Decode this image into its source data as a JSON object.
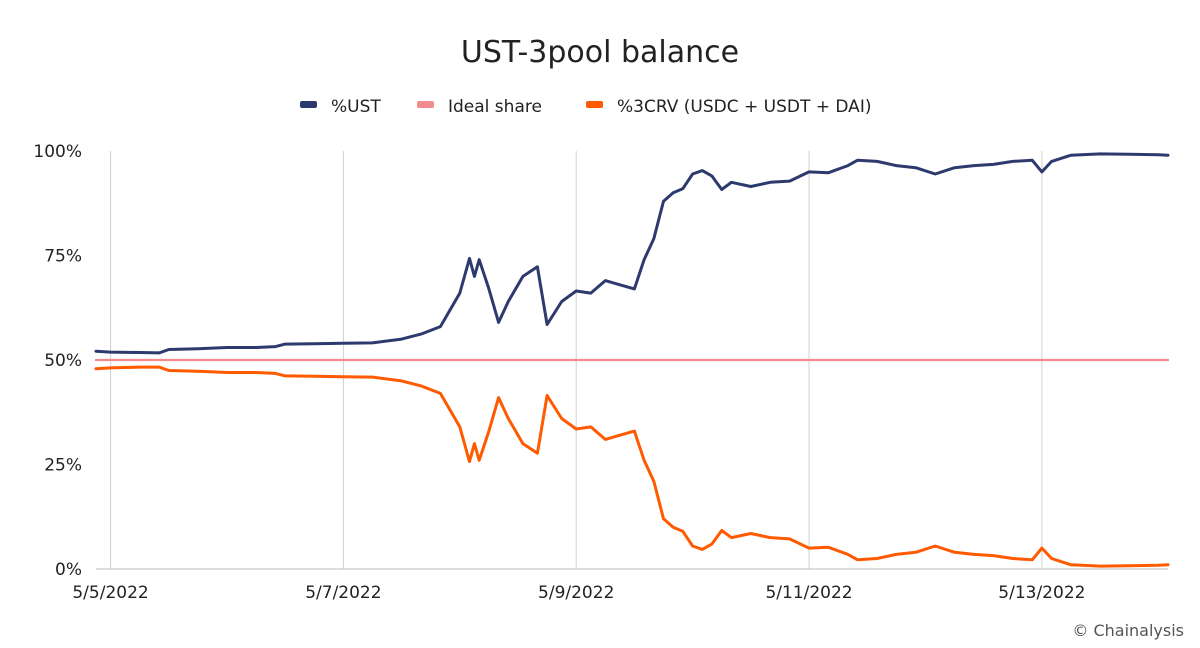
{
  "chart_data": {
    "type": "line",
    "title": "UST-3pool balance",
    "credit": "© Chainalysis",
    "xlabel": "",
    "ylabel": "",
    "x_range": [
      "2022-05-04T21:00",
      "2022-05-14T02:00"
    ],
    "x_ticks": [
      {
        "x": "2022-05-05T00:00",
        "label": "5/5/2022"
      },
      {
        "x": "2022-05-07T00:00",
        "label": "5/7/2022"
      },
      {
        "x": "2022-05-09T00:00",
        "label": "5/9/2022"
      },
      {
        "x": "2022-05-11T00:00",
        "label": "5/11/2022"
      },
      {
        "x": "2022-05-13T00:00",
        "label": "5/13/2022"
      }
    ],
    "ylim": [
      0,
      100
    ],
    "y_ticks": [
      {
        "value": 0,
        "label": "0%"
      },
      {
        "value": 25,
        "label": "25%"
      },
      {
        "value": 50,
        "label": "50%"
      },
      {
        "value": 75,
        "label": "75%"
      },
      {
        "value": 100,
        "label": "100%"
      }
    ],
    "grid": {
      "x": true,
      "y": false
    },
    "legend_position": "top-center",
    "series": [
      {
        "name": "%UST",
        "color": "#2d3a6e",
        "points": [
          [
            "2022-05-04T21:00",
            52.1
          ],
          [
            "2022-05-05T00:00",
            51.9
          ],
          [
            "2022-05-05T06:00",
            51.8
          ],
          [
            "2022-05-05T10:00",
            51.7
          ],
          [
            "2022-05-05T12:00",
            52.5
          ],
          [
            "2022-05-05T18:00",
            52.7
          ],
          [
            "2022-05-06T00:00",
            53.0
          ],
          [
            "2022-05-06T06:00",
            53.0
          ],
          [
            "2022-05-06T10:00",
            53.2
          ],
          [
            "2022-05-06T12:00",
            53.8
          ],
          [
            "2022-05-06T18:00",
            53.9
          ],
          [
            "2022-05-07T00:00",
            54.0
          ],
          [
            "2022-05-07T06:00",
            54.1
          ],
          [
            "2022-05-07T12:00",
            55.0
          ],
          [
            "2022-05-07T16:00",
            56.2
          ],
          [
            "2022-05-07T20:00",
            58.0
          ],
          [
            "2022-05-08T00:00",
            66.0
          ],
          [
            "2022-05-08T02:00",
            74.3
          ],
          [
            "2022-05-08T03:00",
            70.0
          ],
          [
            "2022-05-08T04:00",
            74.0
          ],
          [
            "2022-05-08T06:00",
            67.0
          ],
          [
            "2022-05-08T08:00",
            59.0
          ],
          [
            "2022-05-08T10:00",
            64.0
          ],
          [
            "2022-05-08T13:00",
            70.0
          ],
          [
            "2022-05-08T16:00",
            72.3
          ],
          [
            "2022-05-08T18:00",
            58.5
          ],
          [
            "2022-05-08T21:00",
            64.0
          ],
          [
            "2022-05-09T00:00",
            66.5
          ],
          [
            "2022-05-09T03:00",
            66.0
          ],
          [
            "2022-05-09T06:00",
            69.0
          ],
          [
            "2022-05-09T09:00",
            68.0
          ],
          [
            "2022-05-09T12:00",
            67.0
          ],
          [
            "2022-05-09T14:00",
            74.0
          ],
          [
            "2022-05-09T16:00",
            79.0
          ],
          [
            "2022-05-09T18:00",
            88.0
          ],
          [
            "2022-05-09T20:00",
            90.0
          ],
          [
            "2022-05-09T22:00",
            91.0
          ],
          [
            "2022-05-10T00:00",
            94.5
          ],
          [
            "2022-05-10T02:00",
            95.3
          ],
          [
            "2022-05-10T04:00",
            94.0
          ],
          [
            "2022-05-10T06:00",
            90.8
          ],
          [
            "2022-05-10T08:00",
            92.5
          ],
          [
            "2022-05-10T12:00",
            91.5
          ],
          [
            "2022-05-10T16:00",
            92.5
          ],
          [
            "2022-05-10T20:00",
            92.8
          ],
          [
            "2022-05-11T00:00",
            95.0
          ],
          [
            "2022-05-11T04:00",
            94.8
          ],
          [
            "2022-05-11T08:00",
            96.5
          ],
          [
            "2022-05-11T10:00",
            97.8
          ],
          [
            "2022-05-11T14:00",
            97.5
          ],
          [
            "2022-05-11T18:00",
            96.5
          ],
          [
            "2022-05-11T22:00",
            96.0
          ],
          [
            "2022-05-12T02:00",
            94.5
          ],
          [
            "2022-05-12T06:00",
            96.0
          ],
          [
            "2022-05-12T10:00",
            96.5
          ],
          [
            "2022-05-12T14:00",
            96.8
          ],
          [
            "2022-05-12T18:00",
            97.5
          ],
          [
            "2022-05-12T22:00",
            97.8
          ],
          [
            "2022-05-13T00:00",
            95.0
          ],
          [
            "2022-05-13T02:00",
            97.5
          ],
          [
            "2022-05-13T06:00",
            99.0
          ],
          [
            "2022-05-13T12:00",
            99.3
          ],
          [
            "2022-05-13T18:00",
            99.2
          ],
          [
            "2022-05-14T00:00",
            99.1
          ],
          [
            "2022-05-14T02:00",
            99.0
          ]
        ]
      },
      {
        "name": "Ideal share",
        "color": "#f28b8e",
        "points": [
          [
            "2022-05-04T21:00",
            50
          ],
          [
            "2022-05-14T02:00",
            50
          ]
        ]
      },
      {
        "name": "%3CRV (USDC + USDT + DAI)",
        "color": "#ff5a00",
        "points": [
          [
            "2022-05-04T21:00",
            47.9
          ],
          [
            "2022-05-05T00:00",
            48.1
          ],
          [
            "2022-05-05T06:00",
            48.3
          ],
          [
            "2022-05-05T10:00",
            48.3
          ],
          [
            "2022-05-05T12:00",
            47.5
          ],
          [
            "2022-05-05T18:00",
            47.3
          ],
          [
            "2022-05-06T00:00",
            47.0
          ],
          [
            "2022-05-06T06:00",
            47.0
          ],
          [
            "2022-05-06T10:00",
            46.8
          ],
          [
            "2022-05-06T12:00",
            46.2
          ],
          [
            "2022-05-06T18:00",
            46.1
          ],
          [
            "2022-05-07T00:00",
            46.0
          ],
          [
            "2022-05-07T06:00",
            45.9
          ],
          [
            "2022-05-07T12:00",
            45.0
          ],
          [
            "2022-05-07T16:00",
            43.8
          ],
          [
            "2022-05-07T20:00",
            42.0
          ],
          [
            "2022-05-08T00:00",
            34.0
          ],
          [
            "2022-05-08T02:00",
            25.7
          ],
          [
            "2022-05-08T03:00",
            30.0
          ],
          [
            "2022-05-08T04:00",
            26.0
          ],
          [
            "2022-05-08T06:00",
            33.0
          ],
          [
            "2022-05-08T08:00",
            41.0
          ],
          [
            "2022-05-08T10:00",
            36.0
          ],
          [
            "2022-05-08T13:00",
            30.0
          ],
          [
            "2022-05-08T16:00",
            27.7
          ],
          [
            "2022-05-08T18:00",
            41.5
          ],
          [
            "2022-05-08T21:00",
            36.0
          ],
          [
            "2022-05-09T00:00",
            33.5
          ],
          [
            "2022-05-09T03:00",
            34.0
          ],
          [
            "2022-05-09T06:00",
            31.0
          ],
          [
            "2022-05-09T09:00",
            32.0
          ],
          [
            "2022-05-09T12:00",
            33.0
          ],
          [
            "2022-05-09T14:00",
            26.0
          ],
          [
            "2022-05-09T16:00",
            21.0
          ],
          [
            "2022-05-09T18:00",
            12.0
          ],
          [
            "2022-05-09T20:00",
            10.0
          ],
          [
            "2022-05-09T22:00",
            9.0
          ],
          [
            "2022-05-10T00:00",
            5.5
          ],
          [
            "2022-05-10T02:00",
            4.7
          ],
          [
            "2022-05-10T04:00",
            6.0
          ],
          [
            "2022-05-10T06:00",
            9.2
          ],
          [
            "2022-05-10T08:00",
            7.5
          ],
          [
            "2022-05-10T12:00",
            8.5
          ],
          [
            "2022-05-10T16:00",
            7.5
          ],
          [
            "2022-05-10T20:00",
            7.2
          ],
          [
            "2022-05-11T00:00",
            5.0
          ],
          [
            "2022-05-11T04:00",
            5.2
          ],
          [
            "2022-05-11T08:00",
            3.5
          ],
          [
            "2022-05-11T10:00",
            2.2
          ],
          [
            "2022-05-11T14:00",
            2.5
          ],
          [
            "2022-05-11T18:00",
            3.5
          ],
          [
            "2022-05-11T22:00",
            4.0
          ],
          [
            "2022-05-12T02:00",
            5.5
          ],
          [
            "2022-05-12T06:00",
            4.0
          ],
          [
            "2022-05-12T10:00",
            3.5
          ],
          [
            "2022-05-12T14:00",
            3.2
          ],
          [
            "2022-05-12T18:00",
            2.5
          ],
          [
            "2022-05-12T22:00",
            2.2
          ],
          [
            "2022-05-13T00:00",
            5.0
          ],
          [
            "2022-05-13T02:00",
            2.5
          ],
          [
            "2022-05-13T06:00",
            1.0
          ],
          [
            "2022-05-13T12:00",
            0.7
          ],
          [
            "2022-05-13T18:00",
            0.8
          ],
          [
            "2022-05-14T00:00",
            0.9
          ],
          [
            "2022-05-14T02:00",
            1.0
          ]
        ]
      }
    ]
  }
}
